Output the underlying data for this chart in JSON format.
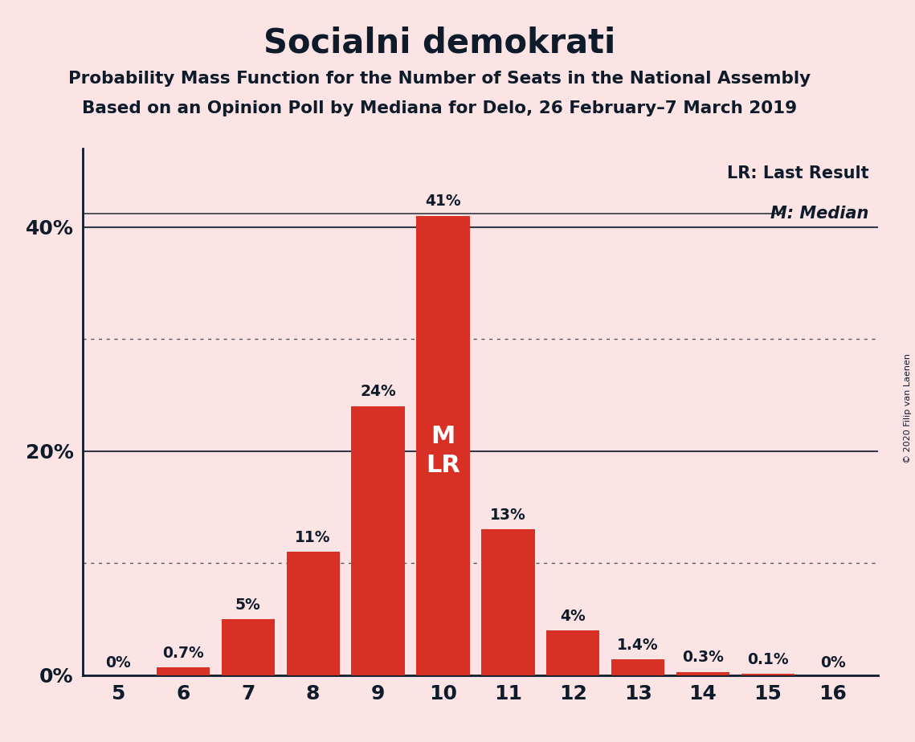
{
  "title": "Socialni demokrati",
  "subtitle1": "Probability Mass Function for the Number of Seats in the National Assembly",
  "subtitle2": "Based on an Opinion Poll by Mediana for Delo, 26 February–7 March 2019",
  "copyright": "© 2020 Filip van Laenen",
  "categories": [
    5,
    6,
    7,
    8,
    9,
    10,
    11,
    12,
    13,
    14,
    15,
    16
  ],
  "values": [
    0.0,
    0.7,
    5.0,
    11.0,
    24.0,
    41.0,
    13.0,
    4.0,
    1.4,
    0.3,
    0.1,
    0.0
  ],
  "labels": [
    "0%",
    "0.7%",
    "5%",
    "11%",
    "24%",
    "41%",
    "13%",
    "4%",
    "1.4%",
    "0.3%",
    "0.1%",
    "0%"
  ],
  "bar_color": "#d93025",
  "background_color": "#fce4e4",
  "text_color": "#0d1b2a",
  "median_seat": 10,
  "lr_seat": 10,
  "legend_lr": "LR: Last Result",
  "legend_m": "M: Median",
  "ytick_values": [
    0,
    20,
    40
  ],
  "ytick_labels": [
    "0%",
    "20%",
    "40%"
  ],
  "solid_lines": [
    20,
    40
  ],
  "dotted_lines": [
    10,
    30
  ],
  "ylim": [
    0,
    47
  ],
  "xlim_left": 4.45,
  "xlim_right": 16.7
}
